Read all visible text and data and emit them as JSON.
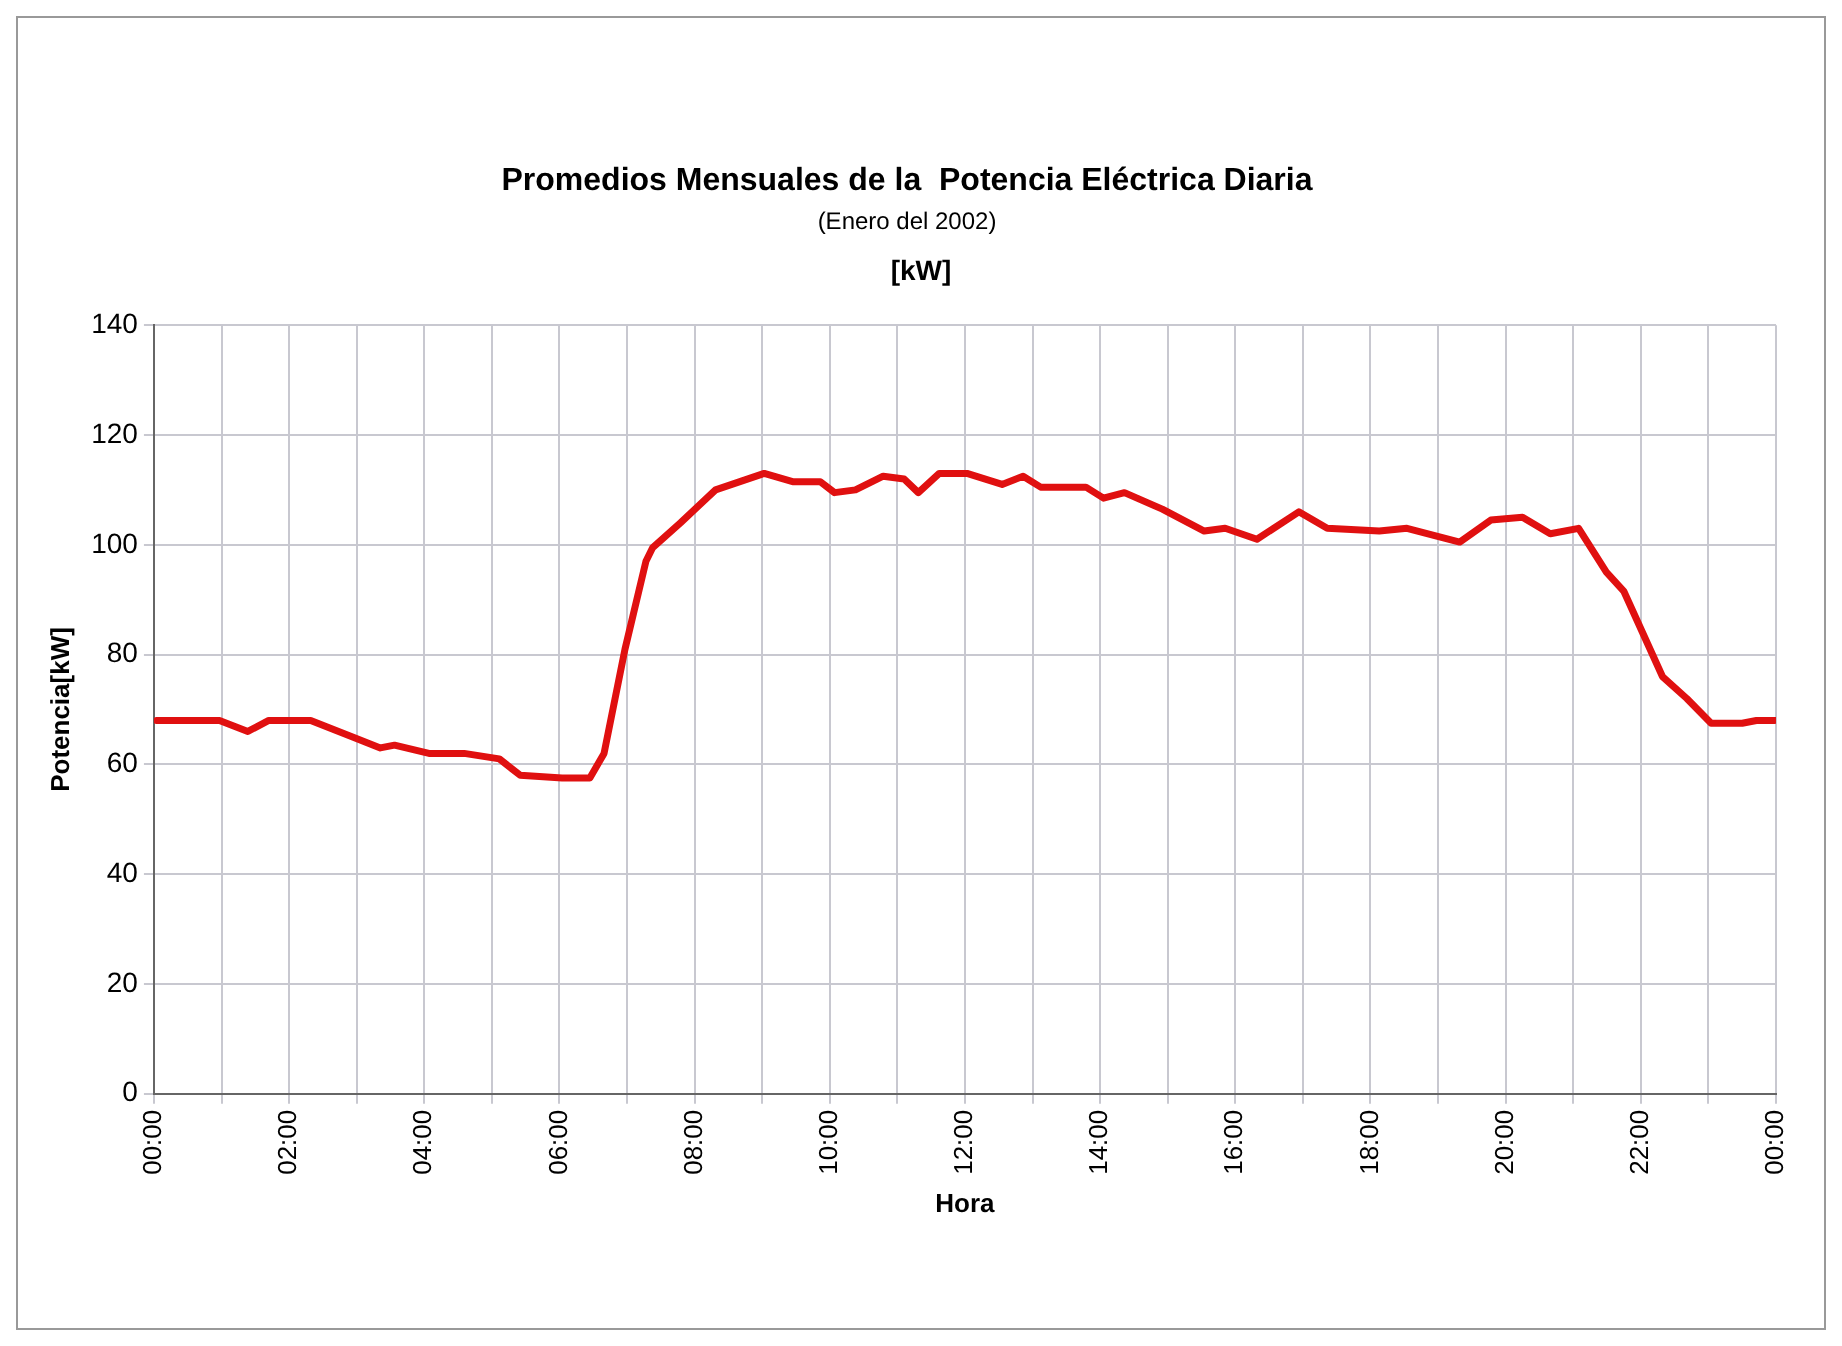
{
  "chart_data": {
    "type": "line",
    "title": "Promedios Mensuales de la  Potencia Eléctrica Diaria",
    "subtitle": "(Enero del 2002)",
    "annotations": [
      "[kW]"
    ],
    "xlabel": "Hora",
    "ylabel": "Potencia[kW]",
    "xlim": [
      0,
      24
    ],
    "xticks": [
      {
        "value": 0,
        "label": "00:00"
      },
      {
        "value": 1,
        "label": null
      },
      {
        "value": 2,
        "label": "02:00"
      },
      {
        "value": 3,
        "label": null
      },
      {
        "value": 4,
        "label": "04:00"
      },
      {
        "value": 5,
        "label": null
      },
      {
        "value": 6,
        "label": "06:00"
      },
      {
        "value": 7,
        "label": null
      },
      {
        "value": 8,
        "label": "08:00"
      },
      {
        "value": 9,
        "label": null
      },
      {
        "value": 10,
        "label": "10:00"
      },
      {
        "value": 11,
        "label": null
      },
      {
        "value": 12,
        "label": "12:00"
      },
      {
        "value": 13,
        "label": null
      },
      {
        "value": 14,
        "label": "14:00"
      },
      {
        "value": 15,
        "label": null
      },
      {
        "value": 16,
        "label": "16:00"
      },
      {
        "value": 17,
        "label": null
      },
      {
        "value": 18,
        "label": "18:00"
      },
      {
        "value": 19,
        "label": null
      },
      {
        "value": 20,
        "label": "20:00"
      },
      {
        "value": 21,
        "label": null
      },
      {
        "value": 22,
        "label": "22:00"
      },
      {
        "value": 23,
        "label": null
      },
      {
        "value": 24,
        "label": "00:00"
      }
    ],
    "ylim": [
      0,
      140
    ],
    "yticks": [
      0,
      20,
      40,
      60,
      80,
      100,
      120,
      140
    ],
    "grid": true,
    "legend": false,
    "marker": "none",
    "line_style": "solid",
    "series": [
      {
        "color": "#e01010",
        "x": [
          0.04,
          0.97,
          1.39,
          1.7,
          2.32,
          2.94,
          3.35,
          3.56,
          4.07,
          4.59,
          5.11,
          5.42,
          6.04,
          6.45,
          6.66,
          6.97,
          7.28,
          7.38,
          7.79,
          8.31,
          9.03,
          9.45,
          9.86,
          10.07,
          10.38,
          10.79,
          11.1,
          11.31,
          11.62,
          12.03,
          12.55,
          12.86,
          13.12,
          13.79,
          14.05,
          14.36,
          14.92,
          15.54,
          15.85,
          16.32,
          16.94,
          17.36,
          18.13,
          18.54,
          19.32,
          19.78,
          20.25,
          20.66,
          21.08,
          21.49,
          21.75,
          22.32,
          22.68,
          23.04,
          23.5,
          23.71,
          23.98
        ],
        "values": [
          68,
          68,
          66,
          68,
          68,
          65,
          63,
          63.5,
          62,
          62,
          61,
          58,
          57.5,
          57.5,
          62,
          81,
          97,
          99.5,
          104,
          110,
          113,
          111.5,
          111.5,
          109.5,
          110,
          112.5,
          112,
          109.5,
          113,
          113,
          111,
          112.5,
          110.5,
          110.5,
          108.5,
          109.5,
          106.5,
          102.5,
          103,
          101,
          106,
          103,
          102.5,
          103,
          100.5,
          104.5,
          105,
          102,
          103,
          95,
          91.5,
          76,
          72,
          67.5,
          67.5,
          68,
          68
        ]
      }
    ]
  }
}
